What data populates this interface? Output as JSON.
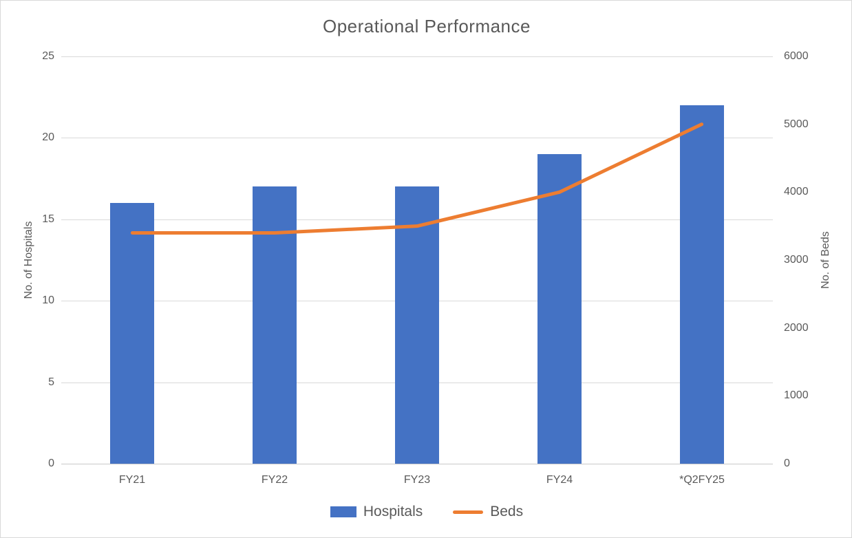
{
  "chart_data": {
    "type": "combo-bar-line",
    "title": "Operational Performance",
    "categories": [
      "FY21",
      "FY22",
      "FY23",
      "FY24",
      "*Q2FY25"
    ],
    "series": [
      {
        "name": "Hospitals",
        "type": "bar",
        "axis": "left",
        "color": "#4472C4",
        "values": [
          16,
          17,
          17,
          19,
          22
        ]
      },
      {
        "name": "Beds",
        "type": "line",
        "axis": "right",
        "color": "#ED7D31",
        "values": [
          3400,
          3400,
          3500,
          4000,
          5000
        ]
      }
    ],
    "left_axis": {
      "title": "No. of Hospitals",
      "min": 0,
      "max": 25,
      "ticks": [
        0,
        5,
        10,
        15,
        20,
        25
      ]
    },
    "right_axis": {
      "title": "No. of Beds",
      "min": 0,
      "max": 6000,
      "ticks": [
        0,
        1000,
        2000,
        3000,
        4000,
        5000,
        6000
      ]
    },
    "gridlines": {
      "horizontal_only": true,
      "follow_axis": "left",
      "color": "#D9D9D9",
      "axis_line_color": "#C9C9C9"
    },
    "legend": {
      "position": "bottom",
      "entries": [
        "Hospitals",
        "Beds"
      ]
    },
    "text_color": "#595959",
    "background_color": "#FFFFFF"
  }
}
